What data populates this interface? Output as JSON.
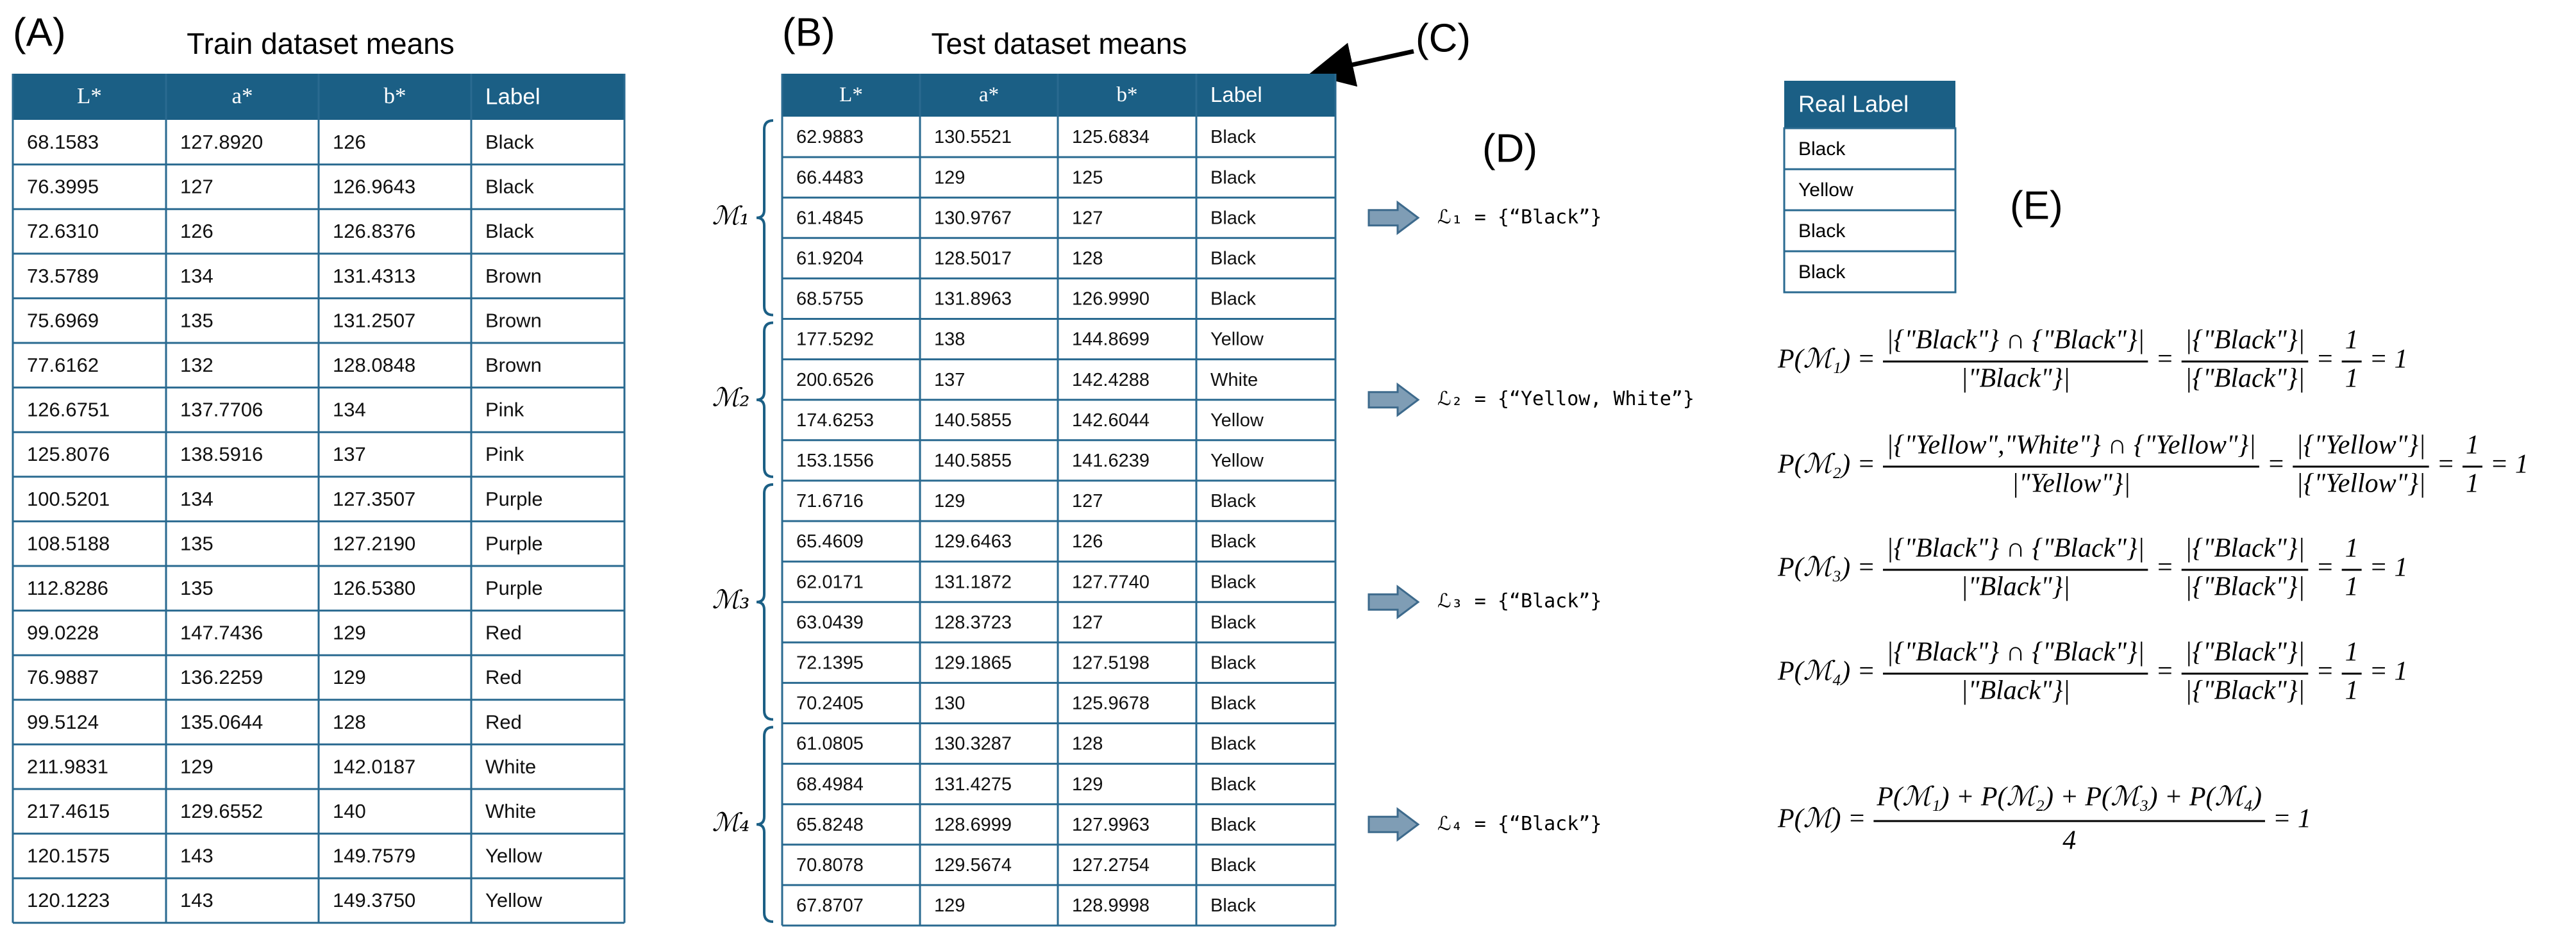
{
  "panels": {
    "a": "(A)",
    "b": "(B)",
    "c": "(C)",
    "d": "(D)",
    "e": "(E)"
  },
  "train": {
    "title": "Train dataset means",
    "columns": [
      "L*",
      "a*",
      "b*",
      "Label"
    ],
    "rows": [
      [
        "68.1583",
        "127.8920",
        "126",
        "Black"
      ],
      [
        "76.3995",
        "127",
        "126.9643",
        "Black"
      ],
      [
        "72.6310",
        "126",
        "126.8376",
        "Black"
      ],
      [
        "73.5789",
        "134",
        "131.4313",
        "Brown"
      ],
      [
        "75.6969",
        "135",
        "131.2507",
        "Brown"
      ],
      [
        "77.6162",
        "132",
        "128.0848",
        "Brown"
      ],
      [
        "126.6751",
        "137.7706",
        "134",
        "Pink"
      ],
      [
        "125.8076",
        "138.5916",
        "137",
        "Pink"
      ],
      [
        "100.5201",
        "134",
        "127.3507",
        "Purple"
      ],
      [
        "108.5188",
        "135",
        "127.2190",
        "Purple"
      ],
      [
        "112.8286",
        "135",
        "126.5380",
        "Purple"
      ],
      [
        "99.0228",
        "147.7436",
        "129",
        "Red"
      ],
      [
        "76.9887",
        "136.2259",
        "129",
        "Red"
      ],
      [
        "99.5124",
        "135.0644",
        "128",
        "Red"
      ],
      [
        "211.9831",
        "129",
        "142.0187",
        "White"
      ],
      [
        "217.4615",
        "129.6552",
        "140",
        "White"
      ],
      [
        "120.1575",
        "143",
        "149.7579",
        "Yellow"
      ],
      [
        "120.1223",
        "143",
        "149.3750",
        "Yellow"
      ]
    ]
  },
  "test": {
    "title": "Test dataset means",
    "columns": [
      "L*",
      "a*",
      "b*",
      "Label"
    ],
    "rows": [
      [
        "62.9883",
        "130.5521",
        "125.6834",
        "Black"
      ],
      [
        "66.4483",
        "129",
        "125",
        "Black"
      ],
      [
        "61.4845",
        "130.9767",
        "127",
        "Black"
      ],
      [
        "61.9204",
        "128.5017",
        "128",
        "Black"
      ],
      [
        "68.5755",
        "131.8963",
        "126.9990",
        "Black"
      ],
      [
        "177.5292",
        "138",
        "144.8699",
        "Yellow"
      ],
      [
        "200.6526",
        "137",
        "142.4288",
        "White"
      ],
      [
        "174.6253",
        "140.5855",
        "142.6044",
        "Yellow"
      ],
      [
        "153.1556",
        "140.5855",
        "141.6239",
        "Yellow"
      ],
      [
        "71.6716",
        "129",
        "127",
        "Black"
      ],
      [
        "65.4609",
        "129.6463",
        "126",
        "Black"
      ],
      [
        "62.0171",
        "131.1872",
        "127.7740",
        "Black"
      ],
      [
        "63.0439",
        "128.3723",
        "127",
        "Black"
      ],
      [
        "72.1395",
        "129.1865",
        "127.5198",
        "Black"
      ],
      [
        "70.2405",
        "130",
        "125.9678",
        "Black"
      ],
      [
        "61.0805",
        "130.3287",
        "128",
        "Black"
      ],
      [
        "68.4984",
        "131.4275",
        "129",
        "Black"
      ],
      [
        "65.8248",
        "128.6999",
        "127.9963",
        "Black"
      ],
      [
        "70.8078",
        "129.5674",
        "127.2754",
        "Black"
      ],
      [
        "67.8707",
        "129",
        "128.9998",
        "Black"
      ]
    ],
    "groups": [
      "ℳ₁",
      "ℳ₂",
      "ℳ₃",
      "ℳ₄"
    ]
  },
  "label_sets": [
    "ℒ₁ = {“Black”}",
    "ℒ₂ = {“Yellow, White”}",
    "ℒ₃ = {“Black”}",
    "ℒ₄ = {“Black”}"
  ],
  "real_label": {
    "header": "Real Label",
    "rows": [
      "Black",
      "Yellow",
      "Black",
      "Black"
    ]
  },
  "equations": [
    {
      "tokens": [
        "P(ℳ₁) =",
        {
          "num": "|{\"Black\"} ∩ {\"Black\"}|",
          "den": "|\"Black\"}|"
        },
        "=",
        {
          "num": "|{\"Black\"}|",
          "den": "|{\"Black\"}|"
        },
        "=",
        {
          "num": "1",
          "den": "1"
        },
        "= 1"
      ]
    },
    {
      "tokens": [
        "P(ℳ₂) =",
        {
          "num": "|{\"Yellow\",\"White\"} ∩ {\"Yellow\"}|",
          "den": "|\"Yellow\"}|"
        },
        "=",
        {
          "num": "|{\"Yellow\"}|",
          "den": "|{\"Yellow\"}|"
        },
        "=",
        {
          "num": "1",
          "den": "1"
        },
        "= 1"
      ]
    },
    {
      "tokens": [
        "P(ℳ₃) =",
        {
          "num": "|{\"Black\"} ∩ {\"Black\"}|",
          "den": "|\"Black\"}|"
        },
        "=",
        {
          "num": "|{\"Black\"}|",
          "den": "|{\"Black\"}|"
        },
        "=",
        {
          "num": "1",
          "den": "1"
        },
        "= 1"
      ]
    },
    {
      "tokens": [
        "P(ℳ₄) =",
        {
          "num": "|{\"Black\"} ∩ {\"Black\"}|",
          "den": "|\"Black\"}|"
        },
        "=",
        {
          "num": "|{\"Black\"}|",
          "den": "|{\"Black\"}|"
        },
        "=",
        {
          "num": "1",
          "den": "1"
        },
        "= 1"
      ]
    },
    {
      "tokens": [
        "P(ℳ) =",
        {
          "num": "P(ℳ₁) + P(ℳ₂) + P(ℳ₃) + P(ℳ₄)",
          "den": "4"
        },
        "= 1"
      ]
    }
  ]
}
